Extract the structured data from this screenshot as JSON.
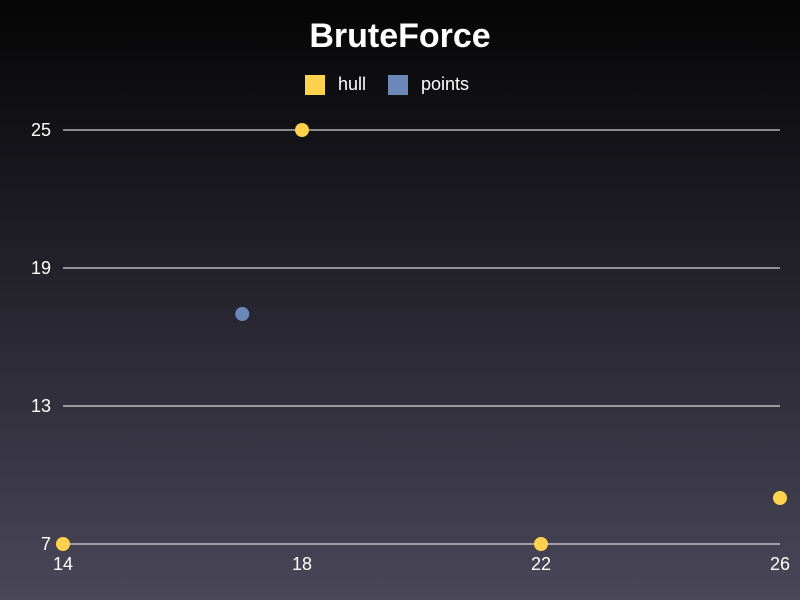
{
  "chart_data": {
    "type": "scatter",
    "title": "BruteForce",
    "xlabel": "",
    "ylabel": "",
    "xlim": [
      14,
      26
    ],
    "ylim": [
      7,
      25
    ],
    "x_ticks": [
      14,
      18,
      22,
      26
    ],
    "y_ticks": [
      7,
      13,
      19,
      25
    ],
    "grid": "horizontal",
    "legend": "top-center",
    "series": [
      {
        "name": "hull",
        "color": "#ffd24d",
        "points": [
          [
            14,
            7
          ],
          [
            18,
            25
          ],
          [
            22,
            7
          ],
          [
            26,
            9
          ]
        ]
      },
      {
        "name": "points",
        "color": "#6b88b8",
        "points": [
          [
            17,
            17
          ]
        ]
      }
    ]
  }
}
